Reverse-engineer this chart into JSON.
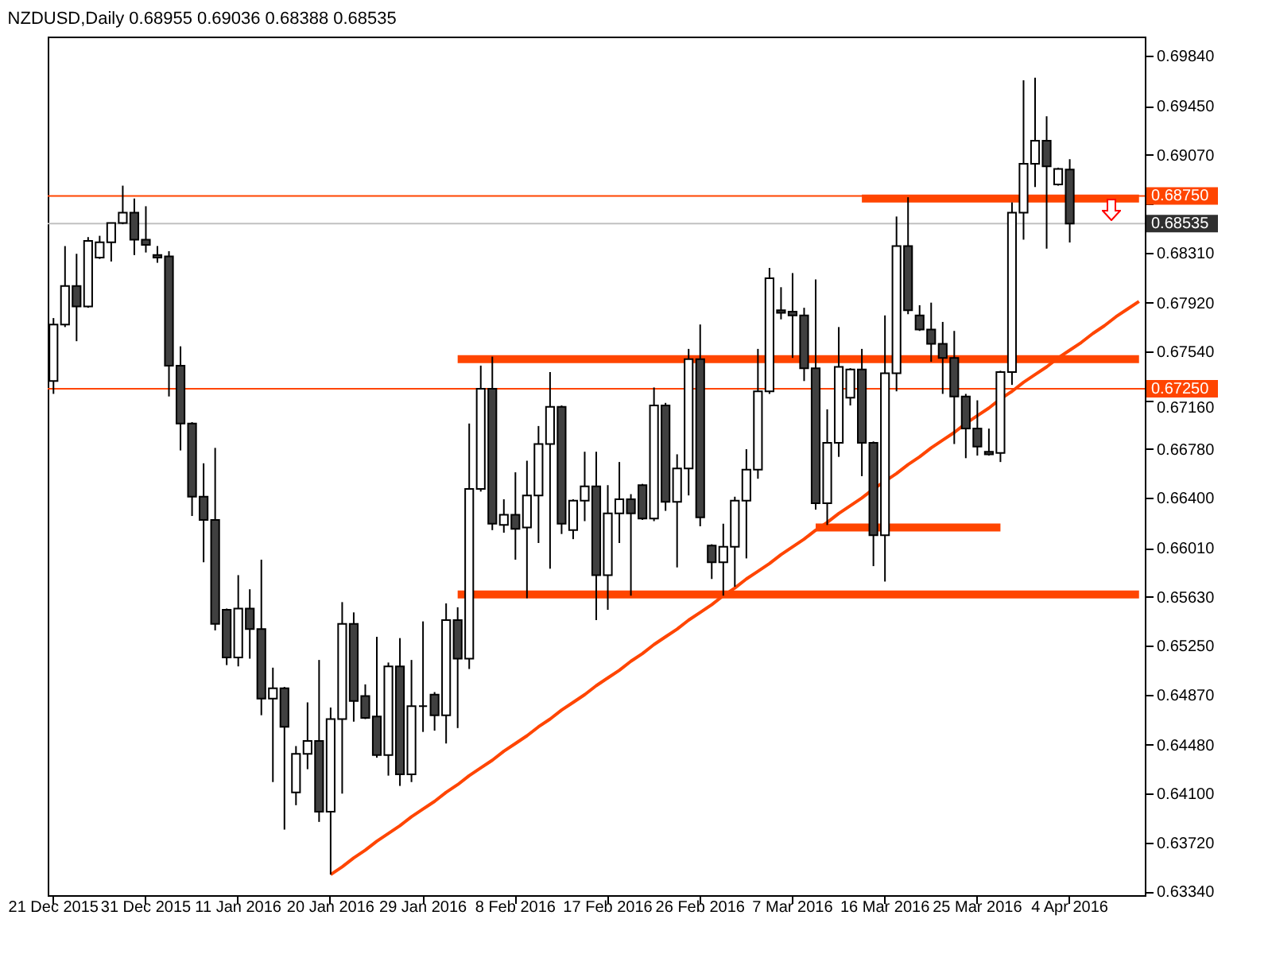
{
  "chart_data": {
    "type": "candlestick",
    "title": "NZDUSD,Daily  0.68955 0.69036 0.68388 0.68535",
    "categories": [
      "21 Dec 2015",
      null,
      null,
      null,
      null,
      null,
      null,
      null,
      "31 Dec 2015",
      null,
      null,
      null,
      null,
      null,
      null,
      null,
      "11 Jan 2016",
      null,
      null,
      null,
      null,
      null,
      null,
      null,
      "20 Jan 2016",
      null,
      null,
      null,
      null,
      null,
      null,
      null,
      "29 Jan 2016",
      null,
      null,
      null,
      null,
      null,
      null,
      null,
      "8 Feb 2016",
      null,
      null,
      null,
      null,
      null,
      null,
      null,
      "17 Feb 2016",
      null,
      null,
      null,
      null,
      null,
      null,
      null,
      "26 Feb 2016",
      null,
      null,
      null,
      null,
      null,
      null,
      null,
      "7 Mar 2016",
      null,
      null,
      null,
      null,
      null,
      null,
      null,
      "16 Mar 2016",
      null,
      null,
      null,
      null,
      null,
      null,
      null,
      "25 Mar 2016",
      null,
      null,
      null,
      null,
      null,
      null,
      null,
      "4 Apr 2016",
      null,
      null,
      null,
      null,
      null,
      null
    ],
    "ohlc": [
      [
        0.6731,
        0.678,
        0.6721,
        0.6775
      ],
      [
        0.6775,
        0.6836,
        0.6773,
        0.6805
      ],
      [
        0.6805,
        0.683,
        0.6762,
        0.6789
      ],
      [
        0.6789,
        0.6843,
        0.6788,
        0.684
      ],
      [
        0.6827,
        0.6844,
        0.6826,
        0.6839
      ],
      [
        0.6839,
        0.6854,
        0.6824,
        0.6854
      ],
      [
        0.6854,
        0.6883,
        0.6853,
        0.6862
      ],
      [
        0.6862,
        0.6873,
        0.6829,
        0.6841
      ],
      [
        0.6841,
        0.6867,
        0.6831,
        0.6837
      ],
      [
        0.6829,
        0.6836,
        0.6823,
        0.6827
      ],
      [
        0.6828,
        0.6832,
        0.6719,
        0.6743
      ],
      [
        0.6743,
        0.6758,
        0.6677,
        0.6698
      ],
      [
        0.6698,
        0.6699,
        0.6626,
        0.6641
      ],
      [
        0.6641,
        0.6667,
        0.659,
        0.6623
      ],
      [
        0.6623,
        0.6679,
        0.6537,
        0.6542
      ],
      [
        0.6553,
        0.6554,
        0.651,
        0.6516
      ],
      [
        0.6516,
        0.658,
        0.6509,
        0.6554
      ],
      [
        0.6554,
        0.6569,
        0.6515,
        0.6538
      ],
      [
        0.6538,
        0.6592,
        0.6471,
        0.6484
      ],
      [
        0.6484,
        0.6508,
        0.6419,
        0.6492
      ],
      [
        0.6492,
        0.6493,
        0.6382,
        0.6462
      ],
      [
        0.6411,
        0.6447,
        0.6401,
        0.6441
      ],
      [
        0.6441,
        0.6481,
        0.6429,
        0.6451
      ],
      [
        0.6451,
        0.6514,
        0.6388,
        0.6396
      ],
      [
        0.6396,
        0.6477,
        0.6347,
        0.6468
      ],
      [
        0.6468,
        0.6559,
        0.641,
        0.6542
      ],
      [
        0.6542,
        0.6551,
        0.6466,
        0.6482
      ],
      [
        0.6486,
        0.6495,
        0.6468,
        0.6469
      ],
      [
        0.647,
        0.6532,
        0.6438,
        0.644
      ],
      [
        0.644,
        0.6512,
        0.6424,
        0.6509
      ],
      [
        0.6509,
        0.6531,
        0.6416,
        0.6425
      ],
      [
        0.6425,
        0.6514,
        0.6419,
        0.6478
      ],
      [
        0.6478,
        0.6544,
        0.6458,
        0.6478
      ],
      [
        0.6487,
        0.6489,
        0.6459,
        0.6471
      ],
      [
        0.6471,
        0.6558,
        0.6449,
        0.6545
      ],
      [
        0.6545,
        0.6555,
        0.6461,
        0.6515
      ],
      [
        0.6515,
        0.6698,
        0.6507,
        0.6647
      ],
      [
        0.6647,
        0.6743,
        0.6645,
        0.6725
      ],
      [
        0.6725,
        0.675,
        0.6615,
        0.662
      ],
      [
        0.6619,
        0.6639,
        0.6613,
        0.6627
      ],
      [
        0.6627,
        0.666,
        0.6592,
        0.6616
      ],
      [
        0.6617,
        0.6669,
        0.6562,
        0.6642
      ],
      [
        0.6642,
        0.6696,
        0.6605,
        0.6682
      ],
      [
        0.6682,
        0.6738,
        0.6585,
        0.6711
      ],
      [
        0.6711,
        0.6712,
        0.6612,
        0.662
      ],
      [
        0.6615,
        0.6639,
        0.6608,
        0.6638
      ],
      [
        0.6638,
        0.6676,
        0.6622,
        0.6649
      ],
      [
        0.6649,
        0.6676,
        0.6545,
        0.658
      ],
      [
        0.658,
        0.665,
        0.6553,
        0.6628
      ],
      [
        0.6628,
        0.6668,
        0.6605,
        0.6639
      ],
      [
        0.6639,
        0.6643,
        0.6564,
        0.6628
      ],
      [
        0.665,
        0.6651,
        0.6623,
        0.6624
      ],
      [
        0.6624,
        0.6726,
        0.6622,
        0.6712
      ],
      [
        0.6712,
        0.6714,
        0.663,
        0.6637
      ],
      [
        0.6637,
        0.6674,
        0.6586,
        0.6663
      ],
      [
        0.6663,
        0.6756,
        0.6642,
        0.6748
      ],
      [
        0.6748,
        0.6775,
        0.6618,
        0.6625
      ],
      [
        0.6603,
        0.6604,
        0.6577,
        0.659
      ],
      [
        0.659,
        0.662,
        0.6564,
        0.6602
      ],
      [
        0.6602,
        0.6641,
        0.6571,
        0.6638
      ],
      [
        0.6638,
        0.6678,
        0.6593,
        0.6662
      ],
      [
        0.6662,
        0.6756,
        0.6655,
        0.6723
      ],
      [
        0.6723,
        0.6819,
        0.6721,
        0.6811
      ],
      [
        0.6786,
        0.6804,
        0.6779,
        0.6784
      ],
      [
        0.6785,
        0.6815,
        0.6749,
        0.6782
      ],
      [
        0.6782,
        0.6788,
        0.6731,
        0.6741
      ],
      [
        0.6741,
        0.681,
        0.6631,
        0.6636
      ],
      [
        0.6636,
        0.6709,
        0.6619,
        0.6683
      ],
      [
        0.6683,
        0.6773,
        0.6672,
        0.6742
      ],
      [
        0.6718,
        0.6741,
        0.6712,
        0.674
      ],
      [
        0.674,
        0.6756,
        0.6657,
        0.6683
      ],
      [
        0.6683,
        0.6684,
        0.6587,
        0.6611
      ],
      [
        0.6611,
        0.6782,
        0.6575,
        0.6737
      ],
      [
        0.6737,
        0.6859,
        0.6723,
        0.6836
      ],
      [
        0.6836,
        0.6874,
        0.6783,
        0.6786
      ],
      [
        0.6782,
        0.679,
        0.677,
        0.6771
      ],
      [
        0.6771,
        0.6792,
        0.6746,
        0.676
      ],
      [
        0.676,
        0.6777,
        0.6721,
        0.6749
      ],
      [
        0.6749,
        0.677,
        0.6682,
        0.6719
      ],
      [
        0.6719,
        0.6721,
        0.6671,
        0.6694
      ],
      [
        0.6694,
        0.6716,
        0.6673,
        0.668
      ],
      [
        0.6676,
        0.6694,
        0.6673,
        0.6674
      ],
      [
        0.6675,
        0.6739,
        0.6668,
        0.6738
      ],
      [
        0.6738,
        0.687,
        0.6728,
        0.6862
      ],
      [
        0.6862,
        0.6965,
        0.6841,
        0.69
      ],
      [
        0.69,
        0.6967,
        0.6882,
        0.6918
      ],
      [
        0.6918,
        0.6937,
        0.6834,
        0.6898
      ],
      [
        0.6884,
        0.6897,
        0.6883,
        0.6896
      ],
      [
        0.68955,
        0.69036,
        0.68388,
        0.68535
      ],
      null,
      null,
      null,
      null,
      null,
      null
    ],
    "ylim": [
      0.6331,
      0.6999
    ],
    "yticks": [
      {
        "value": 0.6334,
        "label": "0.63340"
      },
      {
        "value": 0.6372,
        "label": "0.63720"
      },
      {
        "value": 0.641,
        "label": "0.64100"
      },
      {
        "value": 0.6448,
        "label": "0.64480"
      },
      {
        "value": 0.6487,
        "label": "0.64870"
      },
      {
        "value": 0.6525,
        "label": "0.65250"
      },
      {
        "value": 0.6563,
        "label": "0.65630"
      },
      {
        "value": 0.6601,
        "label": "0.66010"
      },
      {
        "value": 0.664,
        "label": "0.66400"
      },
      {
        "value": 0.6678,
        "label": "0.66780"
      },
      {
        "value": 0.6716,
        "label": "0.67160"
      },
      {
        "value": 0.6754,
        "label": "0.67540"
      },
      {
        "value": 0.6792,
        "label": "0.67920"
      },
      {
        "value": 0.6831,
        "label": "0.68310"
      },
      {
        "value": 0.6869,
        "label": null
      },
      {
        "value": 0.6907,
        "label": "0.69070"
      },
      {
        "value": 0.6945,
        "label": "0.69450"
      },
      {
        "value": 0.6984,
        "label": "0.69840"
      }
    ],
    "series": [
      {
        "type": "line",
        "color": "#ff4500",
        "values": [
          null,
          null,
          null,
          null,
          null,
          null,
          null,
          null,
          null,
          null,
          null,
          null,
          null,
          null,
          null,
          null,
          null,
          null,
          null,
          null,
          null,
          null,
          null,
          null,
          null,
          null,
          null,
          null,
          null,
          null,
          null,
          null,
          null,
          null,
          null,
          null,
          null,
          null,
          null,
          null,
          null,
          null,
          null,
          null,
          null,
          null,
          null,
          null,
          null,
          null,
          null,
          null,
          null,
          null,
          null,
          null,
          null,
          null,
          null,
          null,
          null,
          null,
          null,
          null,
          null,
          null,
          null,
          null,
          null,
          null,
          0.6873,
          0.6873,
          0.6873,
          0.6873,
          0.6873,
          0.6873,
          0.6873,
          0.6873,
          0.6873,
          0.6873,
          0.6873,
          0.6873,
          0.6873,
          0.6873,
          0.6873,
          0.6873,
          0.6873,
          0.6873,
          0.6873,
          0.6873,
          0.6873,
          0.6873,
          0.6873,
          0.6873,
          0.6873
        ]
      },
      {
        "type": "line",
        "color": "#ff4500",
        "values": [
          null,
          null,
          null,
          null,
          null,
          null,
          null,
          null,
          null,
          null,
          null,
          null,
          null,
          null,
          null,
          null,
          null,
          null,
          null,
          null,
          null,
          null,
          null,
          null,
          null,
          null,
          null,
          null,
          null,
          null,
          null,
          null,
          null,
          null,
          null,
          0.6748,
          0.6748,
          0.6748,
          0.6748,
          0.6748,
          0.6748,
          0.6748,
          0.6748,
          0.6748,
          0.6748,
          0.6748,
          0.6748,
          0.6748,
          0.6748,
          0.6748,
          0.6748,
          0.6748,
          0.6748,
          0.6748,
          0.6748,
          0.6748,
          0.6748,
          0.6748,
          0.6748,
          0.6748,
          0.6748,
          0.6748,
          0.6748,
          0.6748,
          0.6748,
          0.6748,
          0.6748,
          0.6748,
          0.6748,
          0.6748,
          0.6748,
          0.6748,
          0.6748,
          0.6748,
          0.6748,
          0.6748,
          0.6748,
          0.6748,
          0.6748,
          0.6748,
          0.6748,
          0.6748,
          0.6748,
          0.6748,
          0.6748,
          0.6748,
          0.6748,
          0.6748,
          0.6748,
          0.6748,
          0.6748,
          0.6748,
          0.6748,
          0.6748,
          0.6748
        ]
      },
      {
        "type": "line",
        "color": "#ff4500",
        "values": [
          null,
          null,
          null,
          null,
          null,
          null,
          null,
          null,
          null,
          null,
          null,
          null,
          null,
          null,
          null,
          null,
          null,
          null,
          null,
          null,
          null,
          null,
          null,
          null,
          null,
          null,
          null,
          null,
          null,
          null,
          null,
          null,
          null,
          null,
          null,
          null,
          null,
          null,
          null,
          null,
          null,
          null,
          null,
          null,
          null,
          null,
          null,
          null,
          null,
          null,
          null,
          null,
          null,
          null,
          null,
          null,
          null,
          null,
          null,
          null,
          null,
          null,
          null,
          null,
          null,
          null,
          0.6617,
          0.6617,
          0.6617,
          0.6617,
          0.6617,
          0.6617,
          0.6617,
          0.6617,
          0.6617,
          0.6617,
          0.6617,
          0.6617,
          0.6617,
          0.6617,
          0.6617,
          0.6617,
          0.6617,
          null,
          null,
          null,
          null,
          null,
          null,
          null,
          null,
          null,
          null,
          null,
          null
        ]
      },
      {
        "type": "line",
        "color": "#ff4500",
        "values": [
          null,
          null,
          null,
          null,
          null,
          null,
          null,
          null,
          null,
          null,
          null,
          null,
          null,
          null,
          null,
          null,
          null,
          null,
          null,
          null,
          null,
          null,
          null,
          null,
          null,
          null,
          null,
          null,
          null,
          null,
          null,
          null,
          null,
          null,
          null,
          0.6565,
          0.6565,
          0.6565,
          0.6565,
          0.6565,
          0.6565,
          0.6565,
          0.6565,
          0.6565,
          0.6565,
          0.6565,
          0.6565,
          0.6565,
          0.6565,
          0.6565,
          0.6565,
          0.6565,
          0.6565,
          0.6565,
          0.6565,
          0.6565,
          0.6565,
          0.6565,
          0.6565,
          0.6565,
          0.6565,
          0.6565,
          0.6565,
          0.6565,
          0.6565,
          0.6565,
          0.6565,
          0.6565,
          0.6565,
          0.6565,
          0.6565,
          0.6565,
          0.6565,
          0.6565,
          0.6565,
          0.6565,
          0.6565,
          0.6565,
          0.6565,
          0.6565,
          0.6565,
          0.6565,
          0.6565,
          0.6565,
          0.6565,
          0.6565,
          0.6565,
          0.6565,
          0.6565,
          0.6565,
          0.6565,
          0.6565,
          0.6565,
          0.6565,
          0.6565
        ]
      },
      {
        "type": "line",
        "color": "#ff4500",
        "values": [
          null,
          null,
          null,
          null,
          null,
          null,
          null,
          null,
          null,
          null,
          null,
          null,
          null,
          null,
          null,
          null,
          null,
          null,
          null,
          null,
          null,
          null,
          null,
          null,
          0.6347,
          0.6353,
          0.636,
          0.6366,
          0.6373,
          0.6379,
          0.6385,
          0.6392,
          0.6398,
          0.6404,
          0.6411,
          0.6417,
          0.6424,
          0.643,
          0.6436,
          0.6443,
          0.6449,
          0.6455,
          0.6462,
          0.6468,
          0.6475,
          0.6481,
          0.6487,
          0.6494,
          0.65,
          0.6506,
          0.6513,
          0.6519,
          0.6526,
          0.6532,
          0.6538,
          0.6545,
          0.6551,
          0.6557,
          0.6564,
          0.657,
          0.6577,
          0.6583,
          0.6589,
          0.6596,
          0.6602,
          0.6608,
          0.6615,
          0.6621,
          0.6628,
          0.6634,
          0.664,
          0.6647,
          0.6653,
          0.6659,
          0.6666,
          0.6672,
          0.6679,
          0.6685,
          0.6691,
          0.6698,
          0.6704,
          0.671,
          0.6717,
          0.6723,
          0.673,
          0.6736,
          0.6742,
          0.6749,
          0.6755,
          0.6761,
          0.6768,
          0.6774,
          0.6781,
          0.6787,
          0.6793
        ]
      }
    ],
    "ref_lines": [
      {
        "axis": "y",
        "value": 0.6875,
        "label": "0.68750",
        "color": "#ff4500"
      },
      {
        "axis": "y",
        "value": 0.6725,
        "label": "0.67250",
        "color": "#ff4500"
      },
      {
        "axis": "y",
        "value": 0.68535,
        "label": "0.68535",
        "color": "#c0c0c0"
      }
    ]
  }
}
